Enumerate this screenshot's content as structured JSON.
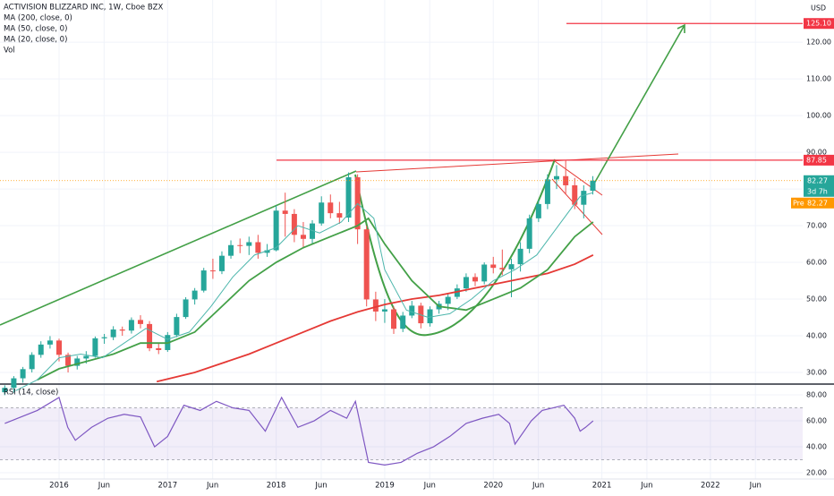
{
  "chart_data": [
    {
      "type": "candlestick",
      "title": "ACTIVISION BLIZZARD INC, 1W, Cboe BZX",
      "currency": "USD",
      "x": [
        2015.5,
        2015.583,
        2015.667,
        2015.75,
        2015.833,
        2015.917,
        2016.0,
        2016.083,
        2016.167,
        2016.25,
        2016.333,
        2016.417,
        2016.5,
        2016.583,
        2016.667,
        2016.75,
        2016.833,
        2016.917,
        2017.0,
        2017.083,
        2017.167,
        2017.25,
        2017.333,
        2017.417,
        2017.5,
        2017.583,
        2017.667,
        2017.75,
        2017.833,
        2017.917,
        2018.0,
        2018.083,
        2018.167,
        2018.25,
        2018.333,
        2018.417,
        2018.5,
        2018.583,
        2018.667,
        2018.75,
        2018.833,
        2018.917,
        2019.0,
        2019.083,
        2019.167,
        2019.25,
        2019.333,
        2019.417,
        2019.5,
        2019.583,
        2019.667,
        2019.75,
        2019.833,
        2019.917,
        2020.0,
        2020.083,
        2020.167,
        2020.25,
        2020.333,
        2020.417,
        2020.5,
        2020.583,
        2020.667,
        2020.75,
        2020.833,
        2020.917
      ],
      "open": [
        24.6,
        25.8,
        28.4,
        30.9,
        34.8,
        37.6,
        38.7,
        34.8,
        31.8,
        33.8,
        34.5,
        39.3,
        39.6,
        41.7,
        41.4,
        44.3,
        43.2,
        36.6,
        36.1,
        40.2,
        45.1,
        49.9,
        52.3,
        57.8,
        57.6,
        61.8,
        64.7,
        64.5,
        65.5,
        62.6,
        63.3,
        74.1,
        73.2,
        67.5,
        66.4,
        70.6,
        76.3,
        73.4,
        72.2,
        83.2,
        69.0,
        49.9,
        46.6,
        47.2,
        41.9,
        45.5,
        48.2,
        43.4,
        47.2,
        48.7,
        50.6,
        52.9,
        56.0,
        54.8,
        59.4,
        58.5,
        58.1,
        59.5,
        63.7,
        72.0,
        75.9,
        82.6,
        83.5,
        81.0,
        75.7,
        79.5
      ],
      "high": [
        26.5,
        29.0,
        31.5,
        35.5,
        38.5,
        39.9,
        39.2,
        35.4,
        34.5,
        35.8,
        39.8,
        40.5,
        42.6,
        42.5,
        45.0,
        45.6,
        44.0,
        38.0,
        41.0,
        46.0,
        50.5,
        53.0,
        58.5,
        61.0,
        63.0,
        66.0,
        66.5,
        67.0,
        67.5,
        65.0,
        75.5,
        79.0,
        74.5,
        71.0,
        71.5,
        78.0,
        78.5,
        76.5,
        84.5,
        84.0,
        70.0,
        52.0,
        50.0,
        48.0,
        46.5,
        49.5,
        49.0,
        48.0,
        49.5,
        51.5,
        54.0,
        57.0,
        57.0,
        60.0,
        61.5,
        63.5,
        61.0,
        65.5,
        73.0,
        77.0,
        84.0,
        86.5,
        87.8,
        83.0,
        81.0,
        83.5
      ],
      "low": [
        23.8,
        24.5,
        27.2,
        30.0,
        34.0,
        36.5,
        33.0,
        30.0,
        30.8,
        32.4,
        34.0,
        37.8,
        38.8,
        40.0,
        40.6,
        42.0,
        35.8,
        35.0,
        35.6,
        39.6,
        44.6,
        48.5,
        51.8,
        55.5,
        56.8,
        61.0,
        62.5,
        62.0,
        61.0,
        61.5,
        63.0,
        67.0,
        65.5,
        64.0,
        65.0,
        70.0,
        72.0,
        70.5,
        71.0,
        65.0,
        48.0,
        44.0,
        43.5,
        40.5,
        41.0,
        44.8,
        42.0,
        42.5,
        46.0,
        47.0,
        50.0,
        52.0,
        53.5,
        54.0,
        57.0,
        56.5,
        50.5,
        57.5,
        62.5,
        71.0,
        74.5,
        80.0,
        78.5,
        74.5,
        72.0,
        78.5
      ],
      "close": [
        25.8,
        28.4,
        30.9,
        34.8,
        37.6,
        38.7,
        34.8,
        31.8,
        33.8,
        34.5,
        39.3,
        39.6,
        41.7,
        41.4,
        44.3,
        43.2,
        36.6,
        36.1,
        40.2,
        45.1,
        49.9,
        52.3,
        57.8,
        57.6,
        61.8,
        64.7,
        64.5,
        65.5,
        62.6,
        63.3,
        74.1,
        73.2,
        67.5,
        66.4,
        70.6,
        76.3,
        73.4,
        72.2,
        83.2,
        69.0,
        49.9,
        46.6,
        47.2,
        41.9,
        45.5,
        48.2,
        43.4,
        47.2,
        48.7,
        50.6,
        52.9,
        56.0,
        54.8,
        59.4,
        58.5,
        58.1,
        59.5,
        63.7,
        72.0,
        75.9,
        82.6,
        83.5,
        81.0,
        75.7,
        79.5,
        82.27
      ],
      "up_color": "#26a69a",
      "down_color": "#ef5350",
      "xlim": [
        2015.456,
        2022.85
      ],
      "ylim": [
        27.07,
        131.5
      ],
      "yticks": [
        {
          "value": 30,
          "label": "30.00"
        },
        {
          "value": 40,
          "label": "40.00"
        },
        {
          "value": 50,
          "label": "50.00"
        },
        {
          "value": 60,
          "label": "60.00"
        },
        {
          "value": 70,
          "label": "70.00"
        },
        {
          "value": 80,
          "label": "80.00"
        },
        {
          "value": 90,
          "label": "90.00"
        },
        {
          "value": 100,
          "label": "100.00"
        },
        {
          "value": 110,
          "label": "110.00"
        },
        {
          "value": 120,
          "label": "120.00"
        }
      ],
      "indicators": [
        {
          "name": "MA (200, close, 0)",
          "color": "#e53935",
          "x": [
            2016.9,
            2017.25,
            2017.5,
            2017.75,
            2018.0,
            2018.25,
            2018.5,
            2018.75,
            2019.0,
            2019.25,
            2019.5,
            2019.75,
            2020.0,
            2020.25,
            2020.5,
            2020.75,
            2020.92
          ],
          "values": [
            27.5,
            30,
            32.5,
            35,
            38,
            41,
            44,
            46.5,
            48.5,
            50,
            51,
            52.5,
            54,
            55.5,
            57,
            59.5,
            62
          ]
        },
        {
          "name": "MA (50, close, 0)",
          "color": "#43a047",
          "x": [
            2015.8,
            2016.0,
            2016.25,
            2016.5,
            2016.75,
            2017.0,
            2017.25,
            2017.5,
            2017.75,
            2018.0,
            2018.25,
            2018.5,
            2018.75,
            2018.85,
            2019.0,
            2019.25,
            2019.5,
            2019.75,
            2020.0,
            2020.25,
            2020.5,
            2020.75,
            2020.92
          ],
          "values": [
            28,
            31,
            33,
            35,
            38,
            38,
            41,
            48,
            55,
            60,
            64,
            67,
            70,
            72,
            65,
            55,
            48,
            47,
            50,
            53,
            58,
            67,
            71
          ]
        },
        {
          "name": "MA (20, close, 0)",
          "color": "#4db6ac",
          "x": [
            2015.6,
            2015.8,
            2016.0,
            2016.2,
            2016.4,
            2016.6,
            2016.8,
            2017.0,
            2017.2,
            2017.4,
            2017.6,
            2017.8,
            2018.0,
            2018.2,
            2018.4,
            2018.6,
            2018.75,
            2018.9,
            2019.0,
            2019.2,
            2019.4,
            2019.6,
            2019.8,
            2020.0,
            2020.2,
            2020.4,
            2020.6,
            2020.8,
            2020.92
          ],
          "values": [
            25,
            28,
            34,
            35,
            34,
            38,
            42,
            39,
            41,
            48,
            56,
            62,
            64,
            70,
            68,
            71,
            76,
            72,
            58,
            47,
            45,
            46,
            50,
            55,
            58,
            62,
            70,
            78,
            79
          ]
        }
      ],
      "volume_label": "Vol",
      "levels": [
        {
          "value": 125.1,
          "label": "125.10",
          "color": "#f23645"
        },
        {
          "value": 87.85,
          "label": "87.85",
          "color": "#f23645"
        }
      ],
      "last_price": {
        "value": 82.27,
        "label": "82.27",
        "color": "#26a69a"
      },
      "countdown": "3d 7h",
      "premarket": {
        "name": "Pre",
        "value": 82.27,
        "label": "82.27",
        "color": "#ff9800"
      }
    },
    {
      "type": "line",
      "title": "RSI (14, close)",
      "color": "#7e57c2",
      "x": [
        2015.5,
        2015.8,
        2016.0,
        2016.08,
        2016.15,
        2016.3,
        2016.45,
        2016.6,
        2016.75,
        2016.88,
        2017.0,
        2017.15,
        2017.3,
        2017.45,
        2017.6,
        2017.75,
        2017.9,
        2018.05,
        2018.2,
        2018.35,
        2018.5,
        2018.65,
        2018.73,
        2018.85,
        2019.0,
        2019.15,
        2019.3,
        2019.45,
        2019.6,
        2019.75,
        2019.9,
        2020.05,
        2020.15,
        2020.2,
        2020.35,
        2020.45,
        2020.55,
        2020.65,
        2020.75,
        2020.8,
        2020.85,
        2020.92
      ],
      "values": [
        58,
        68,
        78,
        55,
        45,
        55,
        62,
        65,
        63,
        40,
        48,
        72,
        68,
        75,
        70,
        68,
        52,
        78,
        55,
        60,
        68,
        62,
        75,
        28,
        26,
        28,
        35,
        40,
        48,
        58,
        62,
        65,
        58,
        42,
        60,
        68,
        70,
        72,
        62,
        52,
        55,
        60
      ],
      "band": [
        30,
        70
      ],
      "band_color": "#7e57c2",
      "xlim": [
        2015.456,
        2022.85
      ],
      "ylim": [
        15.2,
        87.6
      ],
      "yticks": [
        {
          "value": 20,
          "label": "20.00"
        },
        {
          "value": 40,
          "label": "40.00"
        },
        {
          "value": 60,
          "label": "60.00"
        },
        {
          "value": 80,
          "label": "80.00"
        }
      ],
      "xticks": [
        2016,
        {
          "value": 2016.415,
          "label": "Jun"
        },
        2017,
        {
          "value": 2017.415,
          "label": "Jun"
        },
        2018,
        {
          "value": 2018.415,
          "label": "Jun"
        },
        2019,
        {
          "value": 2019.415,
          "label": "Jun"
        },
        2020,
        {
          "value": 2020.415,
          "label": "Jun"
        },
        2021,
        {
          "value": 2021.415,
          "label": "Jun"
        },
        2022,
        {
          "value": 2022.415,
          "label": "Jun"
        }
      ]
    }
  ]
}
